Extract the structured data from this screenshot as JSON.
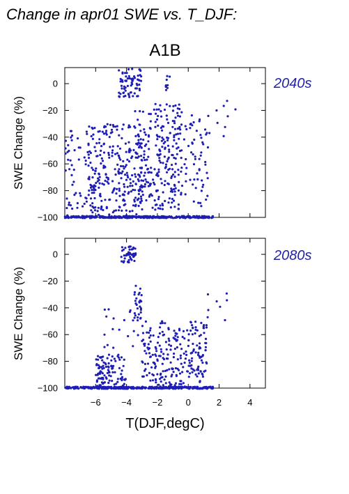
{
  "figure": {
    "title": "Change in apr01 SWE vs. T_DJF:",
    "scenario": "A1B",
    "xlabel": "T(DJF,degC)",
    "ylabel": "SWE Change (%)"
  },
  "colors": {
    "point": "#1e1eb4",
    "period_label": "#2323a8"
  },
  "chart_data": [
    {
      "type": "scatter",
      "period": "2040s",
      "xlabel": "T(DJF,degC)",
      "ylabel": "SWE Change (%)",
      "xlim": [
        -8,
        5
      ],
      "ylim": [
        -100,
        12
      ],
      "x_ticks": [
        -6,
        -4,
        -2,
        0,
        2,
        4
      ],
      "y_ticks": [
        0,
        -20,
        -40,
        -60,
        -80,
        -100
      ],
      "x_tick_labels_shown": false,
      "grid": false,
      "clusters": [
        {
          "x": [
            -8.0,
            1.6
          ],
          "y": [
            -100.5,
            -99.0
          ],
          "n": 320
        },
        {
          "x": [
            -6.5,
            -3.0
          ],
          "y": [
            -100,
            -30
          ],
          "n": 250
        },
        {
          "x": [
            -3.5,
            -0.5
          ],
          "y": [
            -95,
            -15
          ],
          "n": 260
        },
        {
          "x": [
            -8.0,
            -6.0
          ],
          "y": [
            -100,
            -35
          ],
          "n": 70
        },
        {
          "x": [
            -0.5,
            1.3
          ],
          "y": [
            -95,
            -15
          ],
          "n": 70
        },
        {
          "x": [
            -4.5,
            -3.0
          ],
          "y": [
            -10,
            11
          ],
          "n": 70
        },
        {
          "x": [
            -1.5,
            -1.2
          ],
          "y": [
            -5,
            6
          ],
          "n": 10
        },
        {
          "x": [
            1.3,
            3.2
          ],
          "y": [
            -45,
            -12
          ],
          "n": 9
        }
      ]
    },
    {
      "type": "scatter",
      "period": "2080s",
      "xlabel": "T(DJF,degC)",
      "ylabel": "SWE Change (%)",
      "xlim": [
        -8,
        5
      ],
      "ylim": [
        -100,
        12
      ],
      "x_ticks": [
        -6,
        -4,
        -2,
        0,
        2,
        4
      ],
      "y_ticks": [
        0,
        -20,
        -40,
        -60,
        -80,
        -100
      ],
      "x_tick_labels_shown": true,
      "grid": false,
      "clusters": [
        {
          "x": [
            -8.0,
            1.6
          ],
          "y": [
            -100.5,
            -99.0
          ],
          "n": 340
        },
        {
          "x": [
            -6.0,
            -4.0
          ],
          "y": [
            -100,
            -75
          ],
          "n": 110
        },
        {
          "x": [
            -4.4,
            -3.4
          ],
          "y": [
            -6,
            7
          ],
          "n": 45
        },
        {
          "x": [
            -3.5,
            -3.0
          ],
          "y": [
            -50,
            -20
          ],
          "n": 28
        },
        {
          "x": [
            -3.0,
            1.2
          ],
          "y": [
            -100,
            -50
          ],
          "n": 260
        },
        {
          "x": [
            -5.5,
            -3.2
          ],
          "y": [
            -70,
            -40
          ],
          "n": 18
        },
        {
          "x": [
            1.0,
            2.6
          ],
          "y": [
            -55,
            -28
          ],
          "n": 8
        }
      ]
    }
  ]
}
